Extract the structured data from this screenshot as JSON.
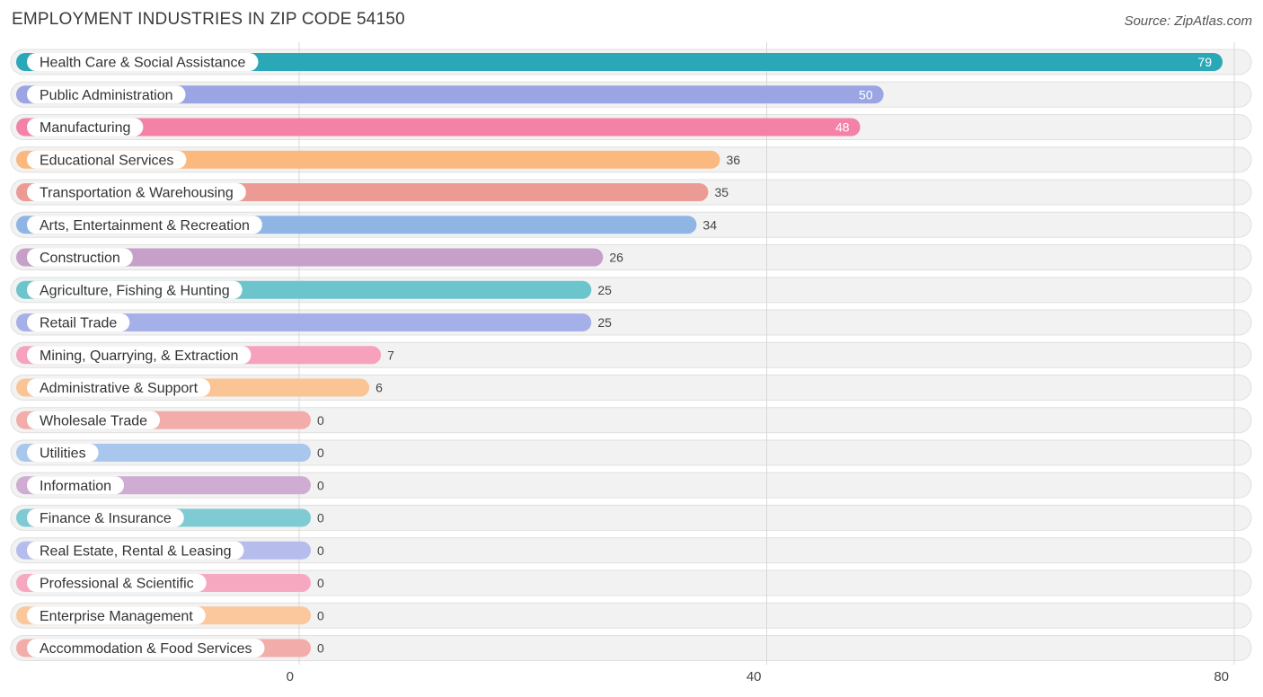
{
  "chart_data": {
    "type": "bar",
    "orientation": "horizontal",
    "title": "EMPLOYMENT INDUSTRIES IN ZIP CODE 54150",
    "source": "Source: ZipAtlas.com",
    "xlim": [
      0,
      80
    ],
    "xticks": [
      0,
      40,
      80
    ],
    "grid": true,
    "categories": [
      "Health Care & Social Assistance",
      "Public Administration",
      "Manufacturing",
      "Educational Services",
      "Transportation & Warehousing",
      "Arts, Entertainment & Recreation",
      "Construction",
      "Agriculture, Fishing & Hunting",
      "Retail Trade",
      "Mining, Quarrying, & Extraction",
      "Administrative & Support",
      "Wholesale Trade",
      "Utilities",
      "Information",
      "Finance & Insurance",
      "Real Estate, Rental & Leasing",
      "Professional & Scientific",
      "Enterprise Management",
      "Accommodation & Food Services"
    ],
    "values": [
      79,
      50,
      48,
      36,
      35,
      34,
      26,
      25,
      25,
      7,
      6,
      0,
      0,
      0,
      0,
      0,
      0,
      0,
      0
    ],
    "colors": [
      "#2ba8b8",
      "#9ba5e3",
      "#f382a6",
      "#fbb87f",
      "#ec9a94",
      "#8fb5e4",
      "#c6a0c9",
      "#6cc4cc",
      "#a6b0e8",
      "#f6a2bd",
      "#fbc495",
      "#f2adaa",
      "#a9c6ec",
      "#cfadd2",
      "#7ecbd3",
      "#b6bdec",
      "#f7a8c1",
      "#fbc79c",
      "#f2adaa"
    ]
  }
}
